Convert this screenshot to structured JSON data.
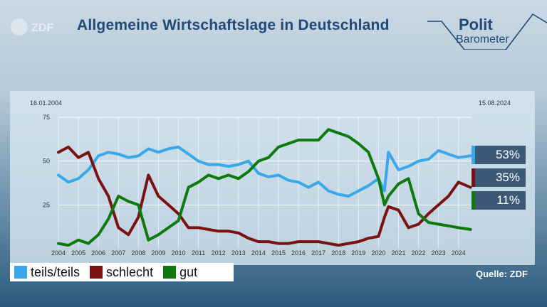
{
  "header": {
    "logo_text": "ZDF",
    "title": "Allgemeine Wirtschaftslage in Deutschland",
    "brand_polit": "Polit",
    "brand_barometer": "Barometer"
  },
  "dates": {
    "start": "16.01.2004",
    "end": "15.08.2024"
  },
  "source": "Quelle: ZDF",
  "legend": [
    {
      "label": "teils/teils",
      "color": "#3aa8e8"
    },
    {
      "label": "schlecht",
      "color": "#7a1212"
    },
    {
      "label": "gut",
      "color": "#0e7a0e"
    }
  ],
  "badges": [
    {
      "label": "53%",
      "color": "#3aa8e8"
    },
    {
      "label": "35%",
      "color": "#7a1212"
    },
    {
      "label": "11%",
      "color": "#0e7a0e"
    }
  ],
  "chart_data": {
    "type": "line",
    "title": "Allgemeine Wirtschaftslage in Deutschland",
    "xlabel": "",
    "ylabel": "",
    "x": [
      2004.0,
      2004.5,
      2005.0,
      2005.5,
      2006.0,
      2006.5,
      2007.0,
      2007.5,
      2008.0,
      2008.5,
      2009.0,
      2009.5,
      2010.0,
      2010.5,
      2011.0,
      2011.5,
      2012.0,
      2012.5,
      2013.0,
      2013.5,
      2014.0,
      2014.5,
      2015.0,
      2015.5,
      2016.0,
      2016.5,
      2017.0,
      2017.5,
      2018.0,
      2018.5,
      2019.0,
      2019.5,
      2020.0,
      2020.3,
      2020.5,
      2021.0,
      2021.5,
      2022.0,
      2022.5,
      2023.0,
      2023.5,
      2024.0,
      2024.6
    ],
    "x_ticks": [
      "2004",
      "2005",
      "2006",
      "2007",
      "2008",
      "2009",
      "2010",
      "2011",
      "2012",
      "2013",
      "2014",
      "2015",
      "2016",
      "2017",
      "2018",
      "2019",
      "2020",
      "2021",
      "2022",
      "2023",
      "2024"
    ],
    "xlim": [
      2004.0,
      2024.65
    ],
    "ylim": [
      0,
      75
    ],
    "y_ticks": [
      25,
      50,
      75
    ],
    "grid": true,
    "series": [
      {
        "name": "teils/teils",
        "color": "#3aa8e8",
        "values": [
          42,
          38,
          40,
          45,
          53,
          55,
          54,
          52,
          53,
          57,
          55,
          57,
          58,
          54,
          50,
          48,
          48,
          47,
          48,
          50,
          43,
          41,
          42,
          39,
          38,
          35,
          38,
          33,
          31,
          30,
          33,
          36,
          40,
          33,
          55,
          45,
          47,
          50,
          51,
          56,
          54,
          52,
          53
        ]
      },
      {
        "name": "schlecht",
        "color": "#7a1212",
        "values": [
          55,
          58,
          52,
          55,
          40,
          30,
          12,
          8,
          18,
          42,
          30,
          25,
          20,
          12,
          12,
          11,
          10,
          10,
          9,
          6,
          4,
          4,
          3,
          3,
          4,
          4,
          4,
          3,
          2,
          3,
          4,
          6,
          7,
          18,
          24,
          22,
          12,
          14,
          20,
          25,
          30,
          38,
          35
        ]
      },
      {
        "name": "gut",
        "color": "#0e7a0e",
        "values": [
          3,
          2,
          5,
          3,
          8,
          17,
          30,
          27,
          25,
          5,
          8,
          12,
          16,
          35,
          38,
          42,
          40,
          42,
          40,
          44,
          50,
          52,
          58,
          60,
          62,
          62,
          62,
          68,
          66,
          64,
          60,
          55,
          40,
          25,
          30,
          37,
          40,
          20,
          15,
          14,
          13,
          12,
          11
        ]
      }
    ]
  }
}
